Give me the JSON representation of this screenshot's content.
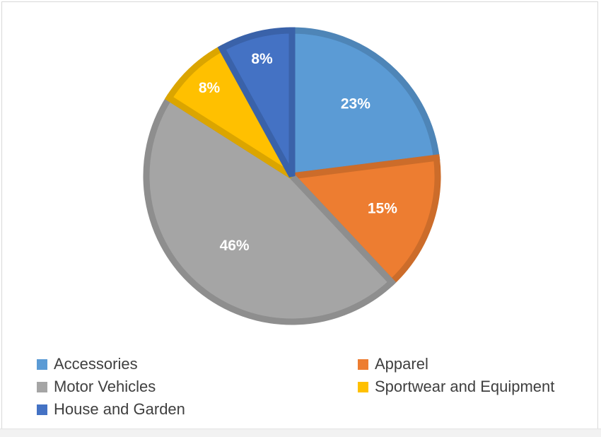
{
  "chart_data": {
    "type": "pie",
    "categories": [
      "Accessories",
      "Apparel",
      "Motor Vehicles",
      "Sportwear and Equipment",
      "House and Garden"
    ],
    "values": [
      23,
      15,
      46,
      8,
      8
    ],
    "data_labels": [
      "23%",
      "15%",
      "46%",
      "8%",
      "8%"
    ],
    "colors": [
      "#5b9bd5",
      "#ed7d31",
      "#a5a5a5",
      "#ffc000",
      "#4472c4"
    ],
    "legend_position": "bottom",
    "start_angle": "12 o'clock",
    "direction": "clockwise",
    "title": "",
    "grid": false
  }
}
